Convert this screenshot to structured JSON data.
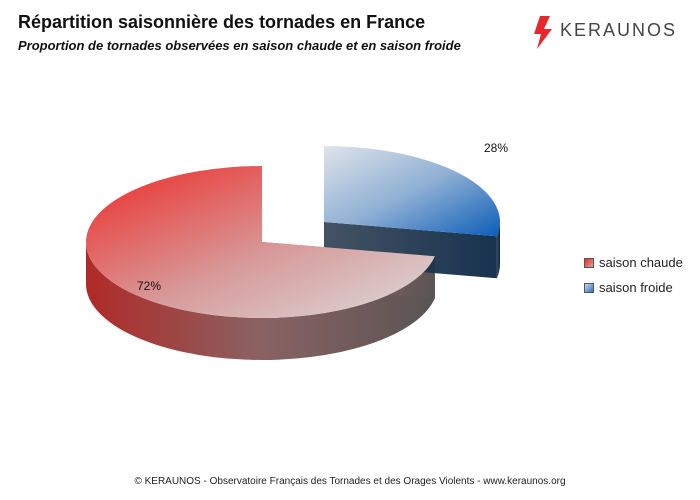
{
  "title": "Répartition saisonnière des tornades en France",
  "subtitle": "Proportion de tornades observées en saison chaude et en saison froide",
  "logo": {
    "text": "KERAUNOS",
    "icon": "lightning-bolt-icon",
    "color": "#e8272c"
  },
  "footer": "© KERAUNOS - Observatoire Français des Tornades et des Orages Violents - www.keraunos.org",
  "chart_data": {
    "type": "pie",
    "style": "3d-exploded",
    "categories": [
      "saison chaude",
      "saison froide"
    ],
    "values": [
      72,
      28
    ],
    "labels": [
      "72%",
      "28%"
    ],
    "colors": [
      "#e8433f",
      "#2f74c0"
    ],
    "legend_position": "right"
  }
}
